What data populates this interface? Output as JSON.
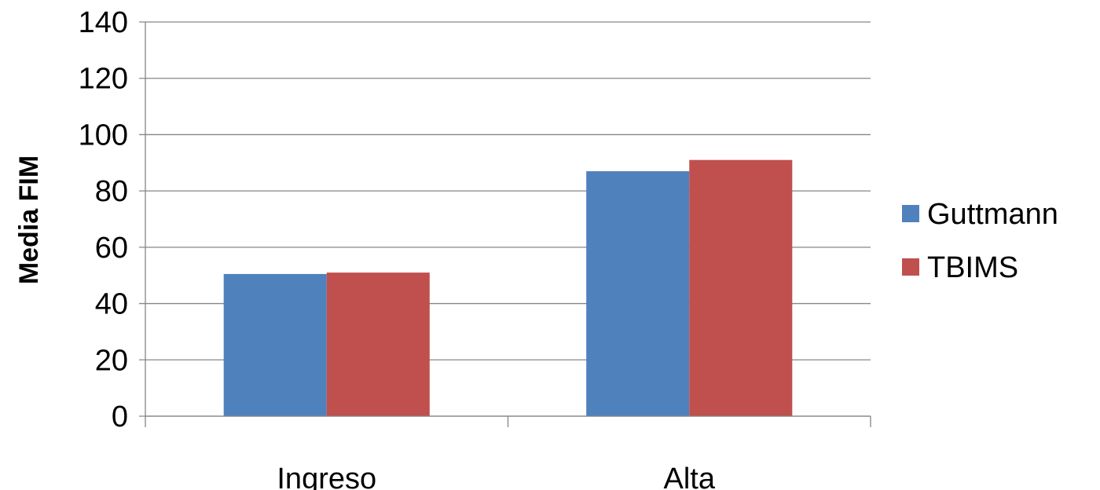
{
  "chart_data": {
    "type": "bar",
    "categories": [
      "Ingreso",
      "Alta"
    ],
    "series": [
      {
        "name": "Guttmann",
        "values": [
          50.5,
          87
        ],
        "color": "#4F81BD"
      },
      {
        "name": "TBIMS",
        "values": [
          51,
          91
        ],
        "color": "#C0504D"
      }
    ],
    "ylabel": "Media FIM",
    "xlabel": "",
    "title": "",
    "ylim": [
      0,
      140
    ],
    "yticks": [
      0,
      20,
      40,
      60,
      80,
      100,
      120,
      140
    ],
    "grid": true,
    "legend_position": "right"
  }
}
